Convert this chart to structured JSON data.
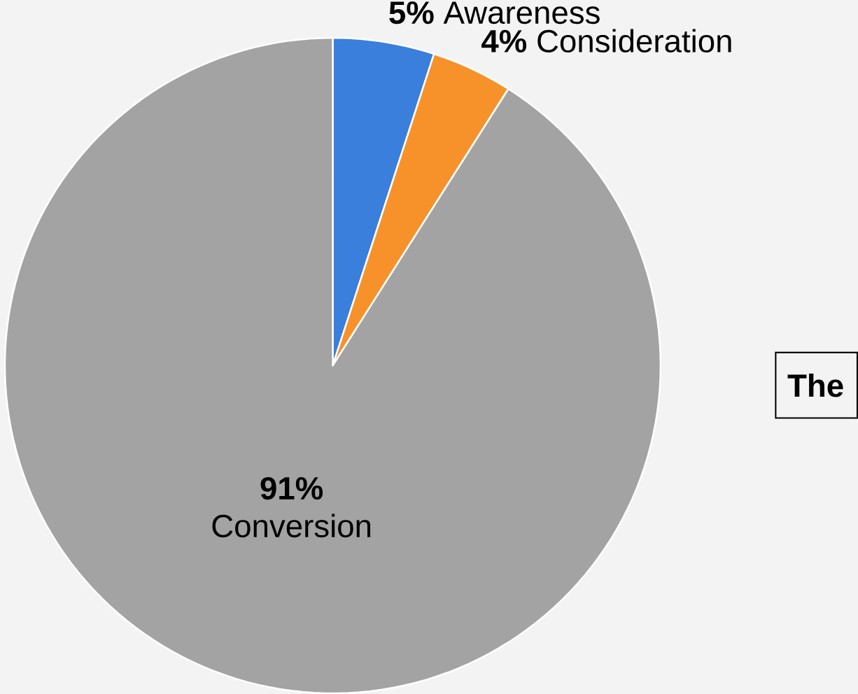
{
  "chart_data": {
    "type": "pie",
    "categories": [
      "Awareness",
      "Consideration",
      "Conversion"
    ],
    "values": [
      5,
      4,
      91
    ],
    "value_labels": [
      "5%",
      "4%",
      "91%"
    ],
    "colors": [
      "#3a7fdc",
      "#f7922a",
      "#a3a3a3"
    ],
    "annotations": [
      "The"
    ]
  }
}
